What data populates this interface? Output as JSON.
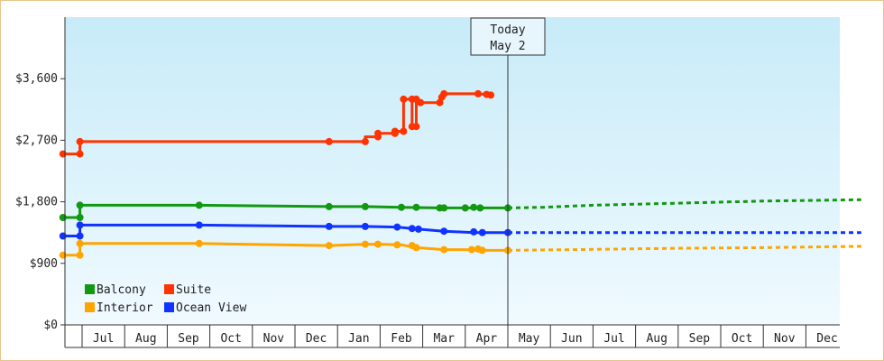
{
  "chart_data": {
    "type": "line",
    "title": "",
    "ylabel": "",
    "xlabel": "",
    "ylim": [
      0,
      4500
    ],
    "y_ticks": [
      {
        "value": 0,
        "label": "$0"
      },
      {
        "value": 900,
        "label": "$900"
      },
      {
        "value": 1800,
        "label": "$1,800"
      },
      {
        "value": 2700,
        "label": "$2,700"
      },
      {
        "value": 3600,
        "label": "$3,600"
      }
    ],
    "x_months": [
      "Jul",
      "Aug",
      "Sep",
      "Oct",
      "Nov",
      "Dec",
      "Jan",
      "Feb",
      "Mar",
      "Apr",
      "May",
      "Jun",
      "Jul",
      "Aug",
      "Sep",
      "Oct",
      "Nov",
      "Dec"
    ],
    "today": {
      "line1": "Today",
      "line2": "May 2",
      "x": 10.0
    },
    "legend": [
      {
        "name": "Balcony",
        "color": "#119911"
      },
      {
        "name": "Suite",
        "color": "#ff3300"
      },
      {
        "name": "Interior",
        "color": "#ffa500"
      },
      {
        "name": "Ocean View",
        "color": "#1133ff"
      }
    ],
    "series": [
      {
        "name": "Suite",
        "color": "#ff3300",
        "points": [
          [
            -0.45,
            2500
          ],
          [
            -0.05,
            2500
          ],
          [
            -0.05,
            2680
          ],
          [
            5.8,
            2680
          ],
          [
            6.65,
            2680
          ],
          [
            6.65,
            2750
          ],
          [
            6.95,
            2750
          ],
          [
            6.95,
            2800
          ],
          [
            7.35,
            2800
          ],
          [
            7.35,
            2830
          ],
          [
            7.55,
            2830
          ],
          [
            7.55,
            3300
          ],
          [
            7.75,
            3300
          ],
          [
            7.75,
            2900
          ],
          [
            7.85,
            2900
          ],
          [
            7.85,
            3300
          ],
          [
            7.95,
            3280
          ],
          [
            7.95,
            3250
          ],
          [
            8.4,
            3250
          ],
          [
            8.45,
            3330
          ],
          [
            8.5,
            3380
          ],
          [
            9.3,
            3380
          ],
          [
            9.5,
            3370
          ],
          [
            9.6,
            3360
          ]
        ],
        "markers": [
          [
            -0.45,
            2500
          ],
          [
            -0.05,
            2500
          ],
          [
            -0.05,
            2680
          ],
          [
            5.8,
            2680
          ],
          [
            6.65,
            2680
          ],
          [
            6.95,
            2750
          ],
          [
            6.95,
            2800
          ],
          [
            7.35,
            2800
          ],
          [
            7.35,
            2830
          ],
          [
            7.55,
            2830
          ],
          [
            7.55,
            3300
          ],
          [
            7.75,
            3300
          ],
          [
            7.75,
            2900
          ],
          [
            7.85,
            2900
          ],
          [
            7.85,
            3300
          ],
          [
            7.95,
            3250
          ],
          [
            8.4,
            3250
          ],
          [
            8.45,
            3330
          ],
          [
            8.5,
            3380
          ],
          [
            9.3,
            3380
          ],
          [
            9.5,
            3370
          ],
          [
            9.6,
            3360
          ]
        ],
        "forecast": []
      },
      {
        "name": "Balcony",
        "color": "#119911",
        "points": [
          [
            -0.45,
            1570
          ],
          [
            -0.05,
            1570
          ],
          [
            -0.05,
            1750
          ],
          [
            2.75,
            1750
          ],
          [
            5.8,
            1730
          ],
          [
            6.65,
            1730
          ],
          [
            7.5,
            1720
          ],
          [
            8.4,
            1710
          ],
          [
            9.0,
            1710
          ],
          [
            10.0,
            1710
          ]
        ],
        "markers": [
          [
            -0.45,
            1570
          ],
          [
            -0.05,
            1570
          ],
          [
            -0.05,
            1750
          ],
          [
            2.75,
            1750
          ],
          [
            5.8,
            1730
          ],
          [
            6.65,
            1730
          ],
          [
            7.5,
            1720
          ],
          [
            7.85,
            1720
          ],
          [
            8.4,
            1710
          ],
          [
            8.5,
            1710
          ],
          [
            9.0,
            1710
          ],
          [
            9.2,
            1720
          ],
          [
            9.35,
            1710
          ],
          [
            10.0,
            1710
          ]
        ],
        "forecast": [
          [
            10.0,
            1710
          ],
          [
            10.8,
            1720
          ],
          [
            12.0,
            1750
          ],
          [
            14.0,
            1780
          ],
          [
            16.0,
            1810
          ],
          [
            18.3,
            1830
          ]
        ]
      },
      {
        "name": "Ocean View",
        "color": "#1133ff",
        "points": [
          [
            -0.45,
            1300
          ],
          [
            -0.05,
            1300
          ],
          [
            -0.05,
            1460
          ],
          [
            2.75,
            1460
          ],
          [
            5.8,
            1440
          ],
          [
            6.65,
            1440
          ],
          [
            7.4,
            1430
          ],
          [
            7.9,
            1400
          ],
          [
            8.5,
            1370
          ],
          [
            9.2,
            1350
          ],
          [
            10.0,
            1350
          ]
        ],
        "markers": [
          [
            -0.45,
            1300
          ],
          [
            -0.05,
            1300
          ],
          [
            -0.05,
            1460
          ],
          [
            2.75,
            1460
          ],
          [
            5.8,
            1440
          ],
          [
            6.65,
            1440
          ],
          [
            7.4,
            1430
          ],
          [
            7.75,
            1410
          ],
          [
            7.9,
            1400
          ],
          [
            8.5,
            1370
          ],
          [
            9.2,
            1360
          ],
          [
            9.4,
            1350
          ],
          [
            10.0,
            1350
          ]
        ],
        "forecast": [
          [
            10.0,
            1350
          ],
          [
            18.3,
            1350
          ]
        ]
      },
      {
        "name": "Interior",
        "color": "#ffa500",
        "points": [
          [
            -0.45,
            1020
          ],
          [
            -0.05,
            1020
          ],
          [
            -0.05,
            1190
          ],
          [
            2.75,
            1190
          ],
          [
            5.8,
            1160
          ],
          [
            6.65,
            1180
          ],
          [
            6.95,
            1180
          ],
          [
            7.5,
            1170
          ],
          [
            7.85,
            1130
          ],
          [
            8.5,
            1100
          ],
          [
            9.0,
            1100
          ],
          [
            9.5,
            1090
          ],
          [
            10.0,
            1090
          ]
        ],
        "markers": [
          [
            -0.45,
            1020
          ],
          [
            -0.05,
            1020
          ],
          [
            -0.05,
            1190
          ],
          [
            2.75,
            1190
          ],
          [
            5.8,
            1160
          ],
          [
            6.65,
            1180
          ],
          [
            6.95,
            1180
          ],
          [
            7.4,
            1170
          ],
          [
            7.75,
            1160
          ],
          [
            7.85,
            1130
          ],
          [
            8.5,
            1100
          ],
          [
            9.15,
            1100
          ],
          [
            9.3,
            1110
          ],
          [
            9.4,
            1090
          ],
          [
            10.0,
            1090
          ]
        ],
        "forecast": [
          [
            10.0,
            1090
          ],
          [
            11.5,
            1100
          ],
          [
            14.0,
            1120
          ],
          [
            16.0,
            1130
          ],
          [
            18.3,
            1150
          ]
        ]
      }
    ]
  }
}
